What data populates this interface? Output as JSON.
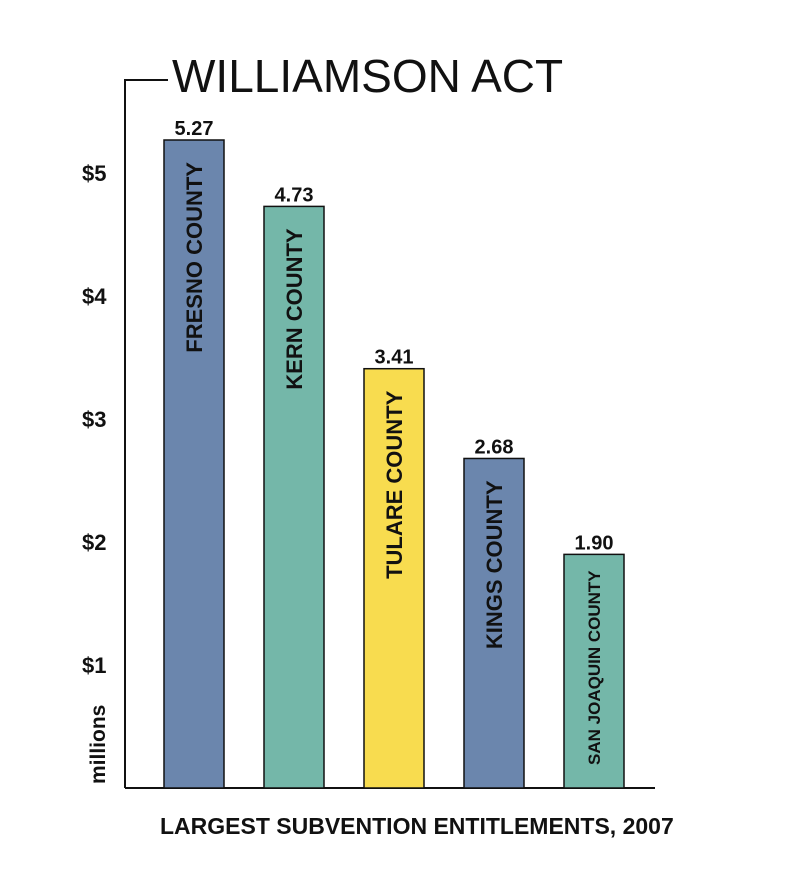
{
  "chart_data": {
    "type": "bar",
    "title": "WILLIAMSON ACT",
    "caption": "LARGEST SUBVENTION ENTITLEMENTS, 2007",
    "ylabel": "millions",
    "ylim": [
      0,
      5.27
    ],
    "yticks": [
      {
        "value": 1,
        "label": "$1"
      },
      {
        "value": 2,
        "label": "$2"
      },
      {
        "value": 3,
        "label": "$3"
      },
      {
        "value": 4,
        "label": "$4"
      },
      {
        "value": 5,
        "label": "$5"
      }
    ],
    "categories": [
      "FRESNO COUNTY",
      "KERN COUNTY",
      "TULARE COUNTY",
      "KINGS COUNTY",
      "SAN JOAQUIN COUNTY"
    ],
    "values": [
      5.27,
      4.73,
      3.41,
      2.68,
      1.9
    ],
    "value_labels": [
      "5.27",
      "4.73",
      "3.41",
      "2.68",
      "1.90"
    ],
    "colors": [
      "#6b86ad",
      "#74b7a9",
      "#f8dc4f",
      "#6b86ad",
      "#74b7a9"
    ],
    "grid": false,
    "legend": "none"
  }
}
